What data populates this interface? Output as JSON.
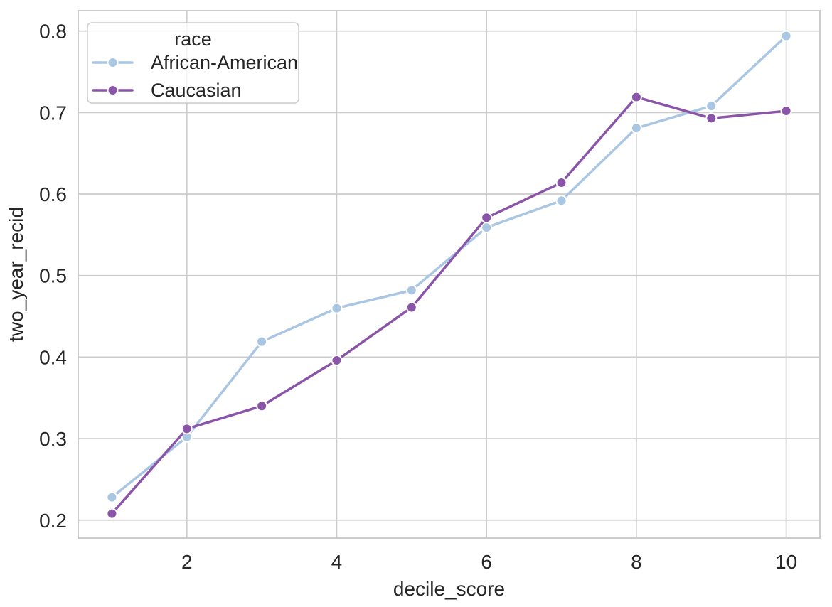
{
  "chart_data": {
    "type": "line",
    "title": "",
    "xlabel": "decile_score",
    "ylabel": "two_year_recid",
    "x": [
      1,
      2,
      3,
      4,
      5,
      6,
      7,
      8,
      9,
      10
    ],
    "series": [
      {
        "name": "African-American",
        "color": "#a9c6e2",
        "values": [
          0.228,
          0.302,
          0.419,
          0.46,
          0.482,
          0.559,
          0.592,
          0.681,
          0.708,
          0.794
        ]
      },
      {
        "name": "Caucasian",
        "color": "#8a55a8",
        "values": [
          0.208,
          0.312,
          0.34,
          0.396,
          0.461,
          0.571,
          0.614,
          0.719,
          0.693,
          0.702
        ]
      }
    ],
    "xlim": [
      0.55,
      10.45
    ],
    "ylim": [
      0.178,
      0.825
    ],
    "xticks": [
      2,
      4,
      6,
      8,
      10
    ],
    "yticks": [
      0.2,
      0.3,
      0.4,
      0.5,
      0.6,
      0.7,
      0.8
    ],
    "ytick_labels": [
      "0.2",
      "0.3",
      "0.4",
      "0.5",
      "0.6",
      "0.7",
      "0.8"
    ],
    "grid": true,
    "legend": {
      "title": "race",
      "position": "upper-left",
      "entries": [
        "African-American",
        "Caucasian"
      ]
    },
    "style": {
      "background_color": "#ffffff",
      "grid_color": "#cccccc",
      "spine_color": "#cccccc",
      "text_color": "#262626",
      "marker_edge_color": "#ffffff",
      "legend_border_color": "#cccccc",
      "legend_background": "rgba(255,255,255,0.8)"
    }
  }
}
